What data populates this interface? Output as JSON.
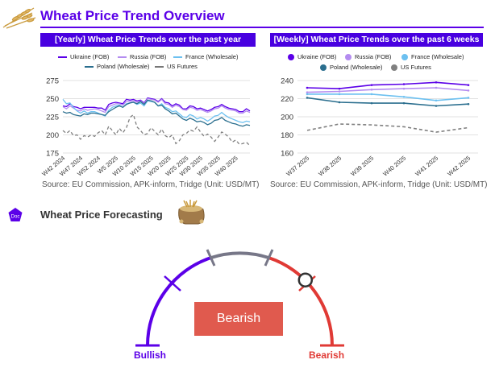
{
  "header": {
    "title": "Wheat Price Trend Overview",
    "logo_icon": "wheat-icon"
  },
  "yearly": {
    "panel_title": "[Yearly] Wheat Price Trends over the past year",
    "source": "Source: EU Commission, APK-inform, Tridge  (Unit: USD/MT)"
  },
  "weekly": {
    "panel_title": "[Weekly] Wheat Price Trends over the past 6 weeks",
    "source": "Source: EU Commission, APK-inform, Tridge  (Unit: USD/MT)"
  },
  "forecast": {
    "badge": "Doc",
    "title": "Wheat Price Forecasting",
    "image_icon": "wheat-sack-icon",
    "bullish_label": "Bullish",
    "bearish_label": "Bearish",
    "result": "Bearish",
    "gauge_value": 0.75,
    "colors": {
      "bullish": "#5b00e8",
      "neutral": "#777788",
      "bearish": "#e03a35"
    }
  },
  "chart_data": [
    {
      "type": "line",
      "title": "[Yearly] Wheat Price Trends over the past year",
      "ylim": [
        175,
        275
      ],
      "yticks": [
        175,
        200,
        225,
        250,
        275
      ],
      "x_tick_labels": [
        "W42 2024",
        "W47 2024",
        "W52 2024",
        "W5 2025",
        "W10 2025",
        "W15 2025",
        "W20 2025",
        "W25 2025",
        "W30 2025",
        "W35 2025",
        "W40 2025"
      ],
      "grid": true,
      "legend_position": "top",
      "series": [
        {
          "name": "Ukraine (FOB)",
          "color": "#5b00e8",
          "dash": false,
          "values": [
            240,
            239,
            243,
            239,
            238,
            236,
            238,
            238,
            238,
            238,
            237,
            237,
            234,
            242,
            244,
            245,
            244,
            243,
            249,
            248,
            249,
            247,
            248,
            244,
            251,
            250,
            249,
            246,
            250,
            245,
            244,
            240,
            243,
            241,
            236,
            236,
            240,
            239,
            236,
            237,
            235,
            233,
            235,
            238,
            239,
            242,
            239,
            237,
            236,
            235,
            232,
            232,
            236,
            233
          ]
        },
        {
          "name": "Russia (FOB)",
          "color": "#b48cf0",
          "dash": false,
          "values": [
            239,
            236,
            240,
            237,
            234,
            233,
            236,
            234,
            235,
            236,
            235,
            233,
            231,
            239,
            241,
            243,
            243,
            241,
            246,
            246,
            247,
            245,
            247,
            243,
            250,
            249,
            248,
            245,
            249,
            243,
            242,
            238,
            241,
            239,
            235,
            234,
            238,
            237,
            234,
            235,
            233,
            231,
            233,
            236,
            237,
            240,
            237,
            235,
            234,
            233,
            230,
            230,
            233,
            231
          ]
        },
        {
          "name": "France (Wholesale)",
          "color": "#6cc0f0",
          "dash": false,
          "values": [
            249,
            243,
            244,
            238,
            233,
            230,
            233,
            230,
            232,
            232,
            230,
            228,
            226,
            234,
            238,
            240,
            241,
            238,
            243,
            244,
            245,
            242,
            244,
            240,
            247,
            246,
            245,
            240,
            243,
            238,
            236,
            232,
            233,
            229,
            225,
            224,
            228,
            226,
            222,
            224,
            222,
            219,
            222,
            226,
            227,
            231,
            227,
            224,
            222,
            220,
            218,
            217,
            219,
            218
          ]
        },
        {
          "name": "Poland (Wholesale)",
          "color": "#2a6e8e",
          "dash": false,
          "values": [
            232,
            230,
            231,
            228,
            227,
            226,
            229,
            228,
            230,
            230,
            229,
            228,
            227,
            232,
            235,
            238,
            240,
            238,
            242,
            244,
            245,
            243,
            246,
            242,
            248,
            247,
            245,
            240,
            241,
            236,
            233,
            229,
            230,
            226,
            222,
            220,
            223,
            221,
            218,
            219,
            217,
            214,
            216,
            220,
            221,
            224,
            220,
            218,
            216,
            215,
            213,
            212,
            214,
            213
          ]
        },
        {
          "name": "US Futures",
          "color": "#808080",
          "dash": true,
          "values": [
            206,
            202,
            206,
            199,
            200,
            194,
            199,
            197,
            200,
            198,
            203,
            206,
            200,
            212,
            206,
            200,
            209,
            203,
            210,
            224,
            228,
            211,
            206,
            200,
            202,
            210,
            205,
            200,
            208,
            199,
            196,
            200,
            188,
            192,
            200,
            202,
            207,
            205,
            211,
            204,
            198,
            201,
            197,
            191,
            197,
            204,
            201,
            197,
            190,
            193,
            187,
            188,
            190,
            185
          ]
        }
      ]
    },
    {
      "type": "line",
      "title": "[Weekly] Wheat Price Trends over the past 6 weeks",
      "ylim": [
        160,
        240
      ],
      "yticks": [
        160,
        180,
        200,
        220,
        240
      ],
      "categories": [
        "W37 2025",
        "W38 2025",
        "W39 2025",
        "W40 2025",
        "W41 2025",
        "W42 2025"
      ],
      "grid": true,
      "legend_position": "top",
      "series": [
        {
          "name": "Ukraine (FOB)",
          "color": "#5b00e8",
          "dash": false,
          "values": [
            232,
            231,
            235,
            236,
            238,
            235
          ]
        },
        {
          "name": "Russia (FOB)",
          "color": "#b48cf0",
          "dash": false,
          "values": [
            227,
            228,
            230,
            231,
            232,
            229
          ]
        },
        {
          "name": "France (Wholesale)",
          "color": "#6cc0f0",
          "dash": false,
          "values": [
            225,
            225,
            225,
            222,
            218,
            221
          ]
        },
        {
          "name": "Poland (Wholesale)",
          "color": "#2a6e8e",
          "dash": false,
          "values": [
            221,
            216,
            215,
            215,
            212,
            214
          ]
        },
        {
          "name": "US Futures",
          "color": "#808080",
          "dash": true,
          "values": [
            185,
            192,
            191,
            189,
            183,
            188
          ]
        }
      ]
    }
  ]
}
